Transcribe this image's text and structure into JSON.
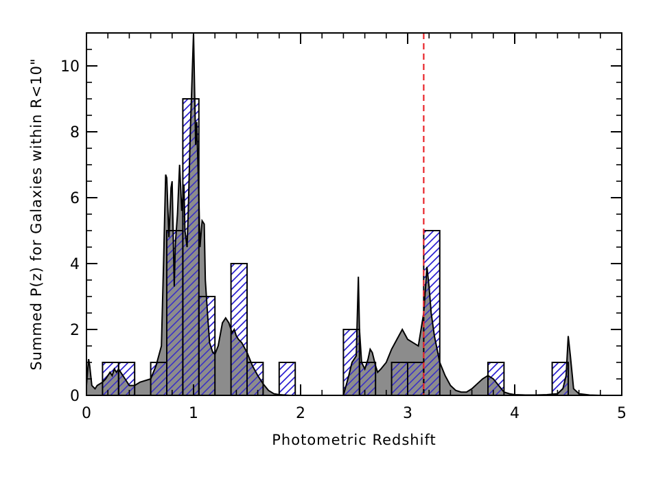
{
  "chart_data": {
    "type": "bar",
    "xlabel": "Photometric Redshift",
    "ylabel": "Summed P(z) for Galaxies within R<10\"",
    "xlim": [
      0,
      5
    ],
    "ylim": [
      0,
      11
    ],
    "xticks": [
      0,
      1,
      2,
      3,
      4,
      5
    ],
    "yticks": [
      0,
      2,
      4,
      6,
      8,
      10
    ],
    "xtick_labels": [
      "0",
      "1",
      "2",
      "3",
      "4",
      "5"
    ],
    "ytick_labels": [
      "0",
      "2",
      "4",
      "6",
      "8",
      "10"
    ],
    "histogram": {
      "bin_width": 0.15,
      "bins": [
        {
          "x0": 0.15,
          "value": 1
        },
        {
          "x0": 0.3,
          "value": 1
        },
        {
          "x0": 0.6,
          "value": 1
        },
        {
          "x0": 0.75,
          "value": 5
        },
        {
          "x0": 0.9,
          "value": 9
        },
        {
          "x0": 1.05,
          "value": 3
        },
        {
          "x0": 1.35,
          "value": 4
        },
        {
          "x0": 1.5,
          "value": 1
        },
        {
          "x0": 1.8,
          "value": 1
        },
        {
          "x0": 2.4,
          "value": 2
        },
        {
          "x0": 2.55,
          "value": 1
        },
        {
          "x0": 2.85,
          "value": 1
        },
        {
          "x0": 3.0,
          "value": 1
        },
        {
          "x0": 3.15,
          "value": 5
        },
        {
          "x0": 3.75,
          "value": 1
        },
        {
          "x0": 4.35,
          "value": 1
        }
      ],
      "hatch_color": "#2a1fd1"
    },
    "pz_curve": {
      "fill_color": "#8c8c8c",
      "x": [
        0.0,
        0.02,
        0.03,
        0.05,
        0.08,
        0.1,
        0.15,
        0.18,
        0.2,
        0.22,
        0.24,
        0.26,
        0.28,
        0.3,
        0.32,
        0.34,
        0.36,
        0.38,
        0.4,
        0.45,
        0.5,
        0.6,
        0.65,
        0.7,
        0.72,
        0.74,
        0.75,
        0.77,
        0.79,
        0.8,
        0.82,
        0.83,
        0.85,
        0.87,
        0.89,
        0.91,
        0.92,
        0.94,
        0.95,
        0.97,
        0.98,
        1.0,
        1.02,
        1.03,
        1.05,
        1.06,
        1.08,
        1.1,
        1.11,
        1.13,
        1.15,
        1.18,
        1.2,
        1.23,
        1.27,
        1.3,
        1.33,
        1.36,
        1.38,
        1.4,
        1.42,
        1.45,
        1.5,
        1.55,
        1.6,
        1.65,
        1.7,
        1.75,
        1.8,
        1.85,
        1.9,
        1.95,
        2.0,
        2.1,
        2.2,
        2.3,
        2.4,
        2.45,
        2.48,
        2.52,
        2.54,
        2.55,
        2.57,
        2.6,
        2.63,
        2.65,
        2.67,
        2.7,
        2.72,
        2.75,
        2.8,
        2.85,
        2.9,
        2.95,
        3.0,
        3.05,
        3.1,
        3.15,
        3.18,
        3.2,
        3.22,
        3.25,
        3.3,
        3.35,
        3.4,
        3.45,
        3.5,
        3.55,
        3.6,
        3.65,
        3.7,
        3.75,
        3.8,
        3.85,
        3.9,
        3.95,
        4.0,
        4.1,
        4.2,
        4.3,
        4.4,
        4.45,
        4.48,
        4.5,
        4.52,
        4.55,
        4.6,
        4.7,
        4.8,
        4.9
      ],
      "y": [
        0.3,
        1.1,
        0.9,
        0.3,
        0.2,
        0.3,
        0.4,
        0.5,
        0.6,
        0.7,
        0.6,
        0.8,
        0.7,
        0.8,
        0.7,
        0.6,
        0.5,
        0.4,
        0.3,
        0.3,
        0.4,
        0.5,
        0.9,
        1.5,
        4.0,
        6.7,
        6.6,
        4.8,
        6.3,
        6.5,
        3.3,
        4.6,
        5.5,
        7.0,
        5.6,
        6.4,
        5.0,
        4.5,
        5.5,
        8.0,
        9.0,
        11.0,
        7.6,
        8.3,
        6.0,
        4.5,
        5.3,
        5.2,
        3.5,
        2.5,
        1.6,
        1.3,
        1.25,
        1.5,
        2.2,
        2.35,
        2.2,
        1.9,
        2.0,
        1.8,
        1.7,
        1.6,
        1.3,
        0.9,
        0.6,
        0.35,
        0.15,
        0.05,
        0.02,
        0.01,
        0.0,
        0.0,
        0.0,
        0.0,
        0.0,
        0.0,
        0.0,
        0.6,
        1.0,
        1.2,
        3.6,
        2.0,
        1.0,
        0.8,
        1.1,
        1.4,
        1.3,
        0.9,
        0.7,
        0.8,
        1.0,
        1.4,
        1.7,
        2.0,
        1.7,
        1.6,
        1.5,
        2.5,
        3.9,
        3.3,
        2.5,
        1.8,
        1.0,
        0.6,
        0.3,
        0.15,
        0.1,
        0.1,
        0.2,
        0.35,
        0.5,
        0.6,
        0.5,
        0.3,
        0.1,
        0.05,
        0.02,
        0.01,
        0.01,
        0.02,
        0.05,
        0.2,
        0.6,
        1.8,
        1.2,
        0.2,
        0.05,
        0.01,
        0.0,
        0.0
      ]
    },
    "vertical_line": {
      "x": 3.15,
      "color": "#e8252a",
      "style": "dashed"
    },
    "grid": false,
    "legend": "none"
  }
}
